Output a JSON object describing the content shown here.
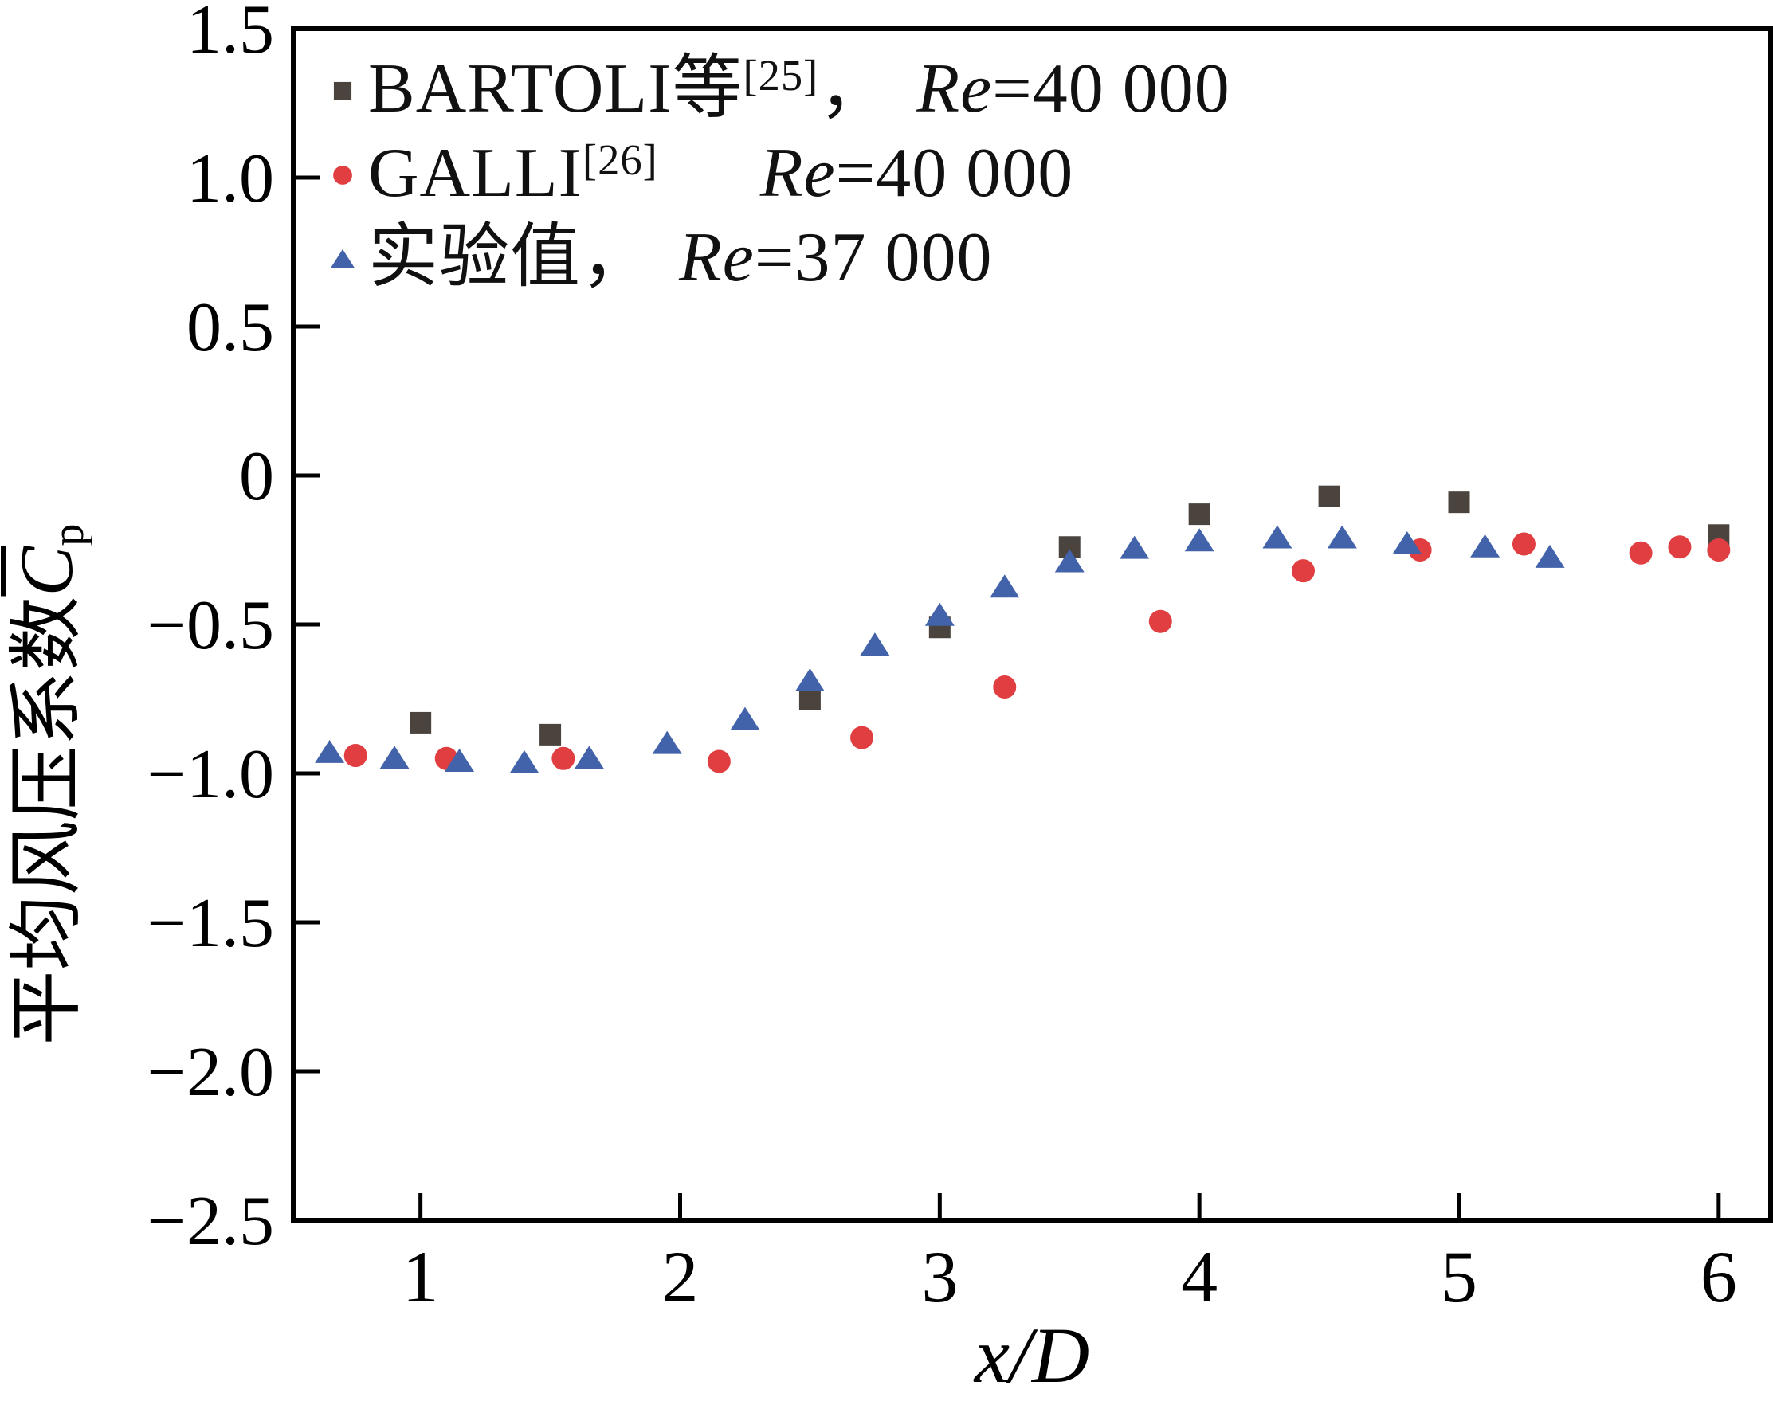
{
  "figure": {
    "background": "#ffffff",
    "axis_color": "#000000",
    "text_color": "#111111"
  },
  "chart_data": {
    "type": "scatter",
    "title": "",
    "xlabel": "x/D",
    "ylabel": "平均风压系数C̄p",
    "ylabel_parts": {
      "cn": "平均风压系数",
      "symbol": "C",
      "symbol_overbar": true,
      "subscript": "p"
    },
    "xlim": [
      0.51,
      6.2
    ],
    "ylim": [
      -2.5,
      1.5
    ],
    "grid": false,
    "legend_position": "upper-left-inside",
    "xticks": {
      "values": [
        1,
        2,
        3,
        4,
        5,
        6
      ],
      "labels": [
        "1",
        "2",
        "3",
        "4",
        "5",
        "6"
      ]
    },
    "yticks": {
      "values": [
        1.5,
        1.0,
        0.5,
        0,
        -0.5,
        -1.0,
        -1.5,
        -2.0,
        -2.5
      ],
      "labels": [
        "1.5",
        "1.0",
        "0.5",
        "0",
        "−0.5",
        "−1.0",
        "−1.5",
        "−2.0",
        "−2.5"
      ]
    },
    "series": [
      {
        "name": "bartoli",
        "marker": "square",
        "color": "#4b443e",
        "label_main": "BARTOLI等",
        "label_sup": "[25]",
        "label_comma": "，",
        "label_re": "Re",
        "label_re_value": "=40 000",
        "points": [
          [
            1.0,
            -0.83
          ],
          [
            1.5,
            -0.87
          ],
          [
            2.5,
            -0.75
          ],
          [
            3.0,
            -0.51
          ],
          [
            3.5,
            -0.24
          ],
          [
            4.0,
            -0.13
          ],
          [
            4.5,
            -0.07
          ],
          [
            5.0,
            -0.09
          ],
          [
            6.0,
            -0.2
          ]
        ]
      },
      {
        "name": "galli",
        "marker": "circle",
        "color": "#e03e41",
        "label_main": "GALLI",
        "label_sup": "[26]",
        "label_comma": "",
        "label_re": "Re",
        "label_re_value": "=40 000",
        "points": [
          [
            0.75,
            -0.94
          ],
          [
            1.1,
            -0.95
          ],
          [
            1.55,
            -0.95
          ],
          [
            2.15,
            -0.96
          ],
          [
            2.7,
            -0.88
          ],
          [
            3.25,
            -0.71
          ],
          [
            3.85,
            -0.49
          ],
          [
            4.4,
            -0.32
          ],
          [
            4.85,
            -0.25
          ],
          [
            5.25,
            -0.23
          ],
          [
            5.7,
            -0.26
          ],
          [
            5.85,
            -0.24
          ],
          [
            6.0,
            -0.25
          ]
        ]
      },
      {
        "name": "experiment",
        "marker": "triangle",
        "color": "#4263aa",
        "label_main": "实验值",
        "label_sup": "",
        "label_comma": "，",
        "label_re": "Re",
        "label_re_value": "=37 000",
        "points": [
          [
            0.65,
            -0.93
          ],
          [
            0.9,
            -0.95
          ],
          [
            1.15,
            -0.96
          ],
          [
            1.4,
            -0.965
          ],
          [
            1.65,
            -0.95
          ],
          [
            1.95,
            -0.9
          ],
          [
            2.25,
            -0.82
          ],
          [
            2.5,
            -0.69
          ],
          [
            2.75,
            -0.57
          ],
          [
            3.0,
            -0.47
          ],
          [
            3.25,
            -0.375
          ],
          [
            3.5,
            -0.29
          ],
          [
            3.75,
            -0.245
          ],
          [
            4.0,
            -0.22
          ],
          [
            4.3,
            -0.21
          ],
          [
            4.55,
            -0.21
          ],
          [
            4.8,
            -0.23
          ],
          [
            5.1,
            -0.24
          ],
          [
            5.35,
            -0.275
          ]
        ]
      }
    ]
  }
}
